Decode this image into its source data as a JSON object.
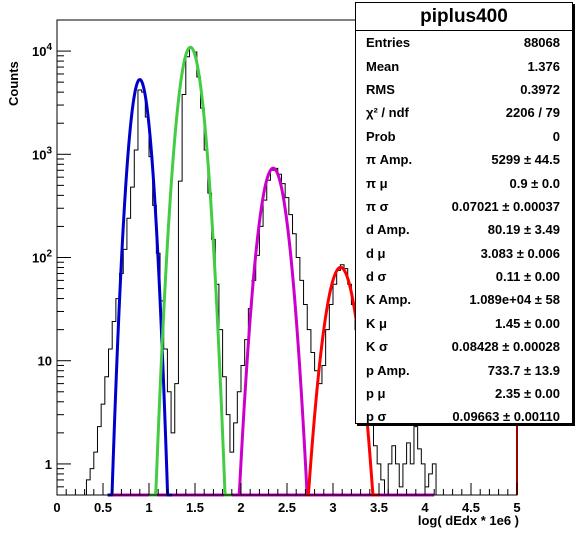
{
  "chart_data": {
    "type": "line",
    "title": "piplus400",
    "xlabel": "log( dEdx * 1e6 )",
    "ylabel": "Counts",
    "xlim": [
      0,
      5
    ],
    "ylim": [
      0.5,
      20000
    ],
    "yscale": "log",
    "x_ticks": [
      "0",
      "0.5",
      "1",
      "1.5",
      "2",
      "2.5",
      "3",
      "3.5",
      "4",
      "4.5",
      "5"
    ],
    "y_ticks": [
      {
        "base": "1",
        "exp": ""
      },
      {
        "base": "10",
        "exp": ""
      },
      {
        "base": "10",
        "exp": "2"
      },
      {
        "base": "10",
        "exp": "3"
      },
      {
        "base": "10",
        "exp": "4"
      }
    ],
    "series": [
      {
        "color": "#0000cc",
        "amp": 5299,
        "mu": 0.9,
        "sigma": 0.07021,
        "range": [
          0.55,
          1.25
        ]
      },
      {
        "color": "#44cc44",
        "amp": 10890,
        "mu": 1.45,
        "sigma": 0.08428,
        "range": [
          1.0,
          1.95
        ]
      },
      {
        "color": "#cc00cc",
        "amp": 733.7,
        "mu": 2.35,
        "sigma": 0.09663,
        "range": [
          1.9,
          2.8
        ]
      },
      {
        "color": "#ff0000",
        "amp": 80.19,
        "mu": 3.083,
        "sigma": 0.11,
        "range": [
          2.7,
          3.5
        ]
      }
    ],
    "baseline_color": "#cc00cc",
    "histogram": [
      [
        0.3,
        0.5
      ],
      [
        0.34,
        0.7
      ],
      [
        0.38,
        0.9
      ],
      [
        0.42,
        1.3
      ],
      [
        0.46,
        2.3
      ],
      [
        0.5,
        3.8
      ],
      [
        0.54,
        7
      ],
      [
        0.58,
        13
      ],
      [
        0.62,
        24
      ],
      [
        0.66,
        40
      ],
      [
        0.7,
        70
      ],
      [
        0.74,
        120
      ],
      [
        0.78,
        240
      ],
      [
        0.82,
        480
      ],
      [
        0.86,
        1100
      ],
      [
        0.9,
        4200
      ],
      [
        0.94,
        4000
      ],
      [
        0.98,
        2300
      ],
      [
        1.02,
        950
      ],
      [
        1.06,
        320
      ],
      [
        1.1,
        110
      ],
      [
        1.14,
        38
      ],
      [
        1.18,
        13
      ],
      [
        1.22,
        5
      ],
      [
        1.26,
        2
      ],
      [
        1.3,
        6
      ],
      [
        1.34,
        550
      ],
      [
        1.38,
        3800
      ],
      [
        1.42,
        8800
      ],
      [
        1.46,
        10600
      ],
      [
        1.5,
        9800
      ],
      [
        1.54,
        5600
      ],
      [
        1.58,
        2800
      ],
      [
        1.62,
        1100
      ],
      [
        1.66,
        420
      ],
      [
        1.7,
        150
      ],
      [
        1.74,
        55
      ],
      [
        1.78,
        20
      ],
      [
        1.82,
        7
      ],
      [
        1.86,
        3
      ],
      [
        1.9,
        1.3
      ],
      [
        1.94,
        2.5
      ],
      [
        1.98,
        5
      ],
      [
        2.02,
        9
      ],
      [
        2.06,
        16
      ],
      [
        2.1,
        32
      ],
      [
        2.14,
        60
      ],
      [
        2.18,
        105
      ],
      [
        2.22,
        200
      ],
      [
        2.26,
        360
      ],
      [
        2.3,
        560
      ],
      [
        2.34,
        700
      ],
      [
        2.38,
        730
      ],
      [
        2.42,
        640
      ],
      [
        2.46,
        520
      ],
      [
        2.5,
        380
      ],
      [
        2.54,
        260
      ],
      [
        2.58,
        170
      ],
      [
        2.62,
        100
      ],
      [
        2.66,
        60
      ],
      [
        2.7,
        35
      ],
      [
        2.74,
        20
      ],
      [
        2.78,
        12
      ],
      [
        2.82,
        8
      ],
      [
        2.86,
        6
      ],
      [
        2.9,
        9
      ],
      [
        2.94,
        20
      ],
      [
        2.98,
        35
      ],
      [
        3.02,
        55
      ],
      [
        3.06,
        75
      ],
      [
        3.1,
        85
      ],
      [
        3.14,
        78
      ],
      [
        3.18,
        55
      ],
      [
        3.22,
        35
      ],
      [
        3.26,
        20
      ],
      [
        3.3,
        12
      ],
      [
        3.34,
        7
      ],
      [
        3.38,
        4
      ],
      [
        3.42,
        2.5
      ],
      [
        3.46,
        1.5
      ],
      [
        3.5,
        1
      ],
      [
        3.54,
        0.7
      ],
      [
        3.58,
        0.5
      ],
      [
        3.62,
        1
      ],
      [
        3.66,
        1.5
      ],
      [
        3.7,
        1
      ],
      [
        3.74,
        0.6
      ],
      [
        3.78,
        1
      ],
      [
        3.82,
        1.6
      ],
      [
        3.86,
        1
      ],
      [
        3.9,
        2.3
      ],
      [
        3.94,
        1.4
      ],
      [
        3.98,
        1
      ],
      [
        4.02,
        0.6
      ],
      [
        4.06,
        0.8
      ],
      [
        4.1,
        1
      ],
      [
        4.14,
        0.5
      ]
    ]
  },
  "stats": {
    "title": "piplus400",
    "rows": [
      {
        "label": "Entries",
        "value": "88068"
      },
      {
        "label": "Mean",
        "value": "1.376"
      },
      {
        "label": "RMS",
        "value": "0.3972"
      },
      {
        "label": "χ² / ndf",
        "value": "2206 / 79"
      },
      {
        "label": "Prob",
        "value": "0"
      },
      {
        "label": "π Amp.",
        "value": "5299 ± 44.5"
      },
      {
        "label": "π μ",
        "value": "0.9 ± 0.0"
      },
      {
        "label": "π σ",
        "value": "0.07021 ± 0.00037"
      },
      {
        "label": "d Amp.",
        "value": "80.19 ± 3.49"
      },
      {
        "label": "d μ",
        "value": "3.083 ± 0.006"
      },
      {
        "label": "d σ",
        "value": "0.11 ± 0.00"
      },
      {
        "label": "K Amp.",
        "value": "1.089e+04 ± 58"
      },
      {
        "label": "K μ",
        "value": "1.45 ± 0.00"
      },
      {
        "label": "K σ",
        "value": "0.08428 ± 0.00028"
      },
      {
        "label": "p Amp.",
        "value": "733.7 ± 13.9"
      },
      {
        "label": "p μ",
        "value": "2.35 ± 0.00"
      },
      {
        "label": "p σ",
        "value": "0.09663 ± 0.00110"
      }
    ]
  }
}
